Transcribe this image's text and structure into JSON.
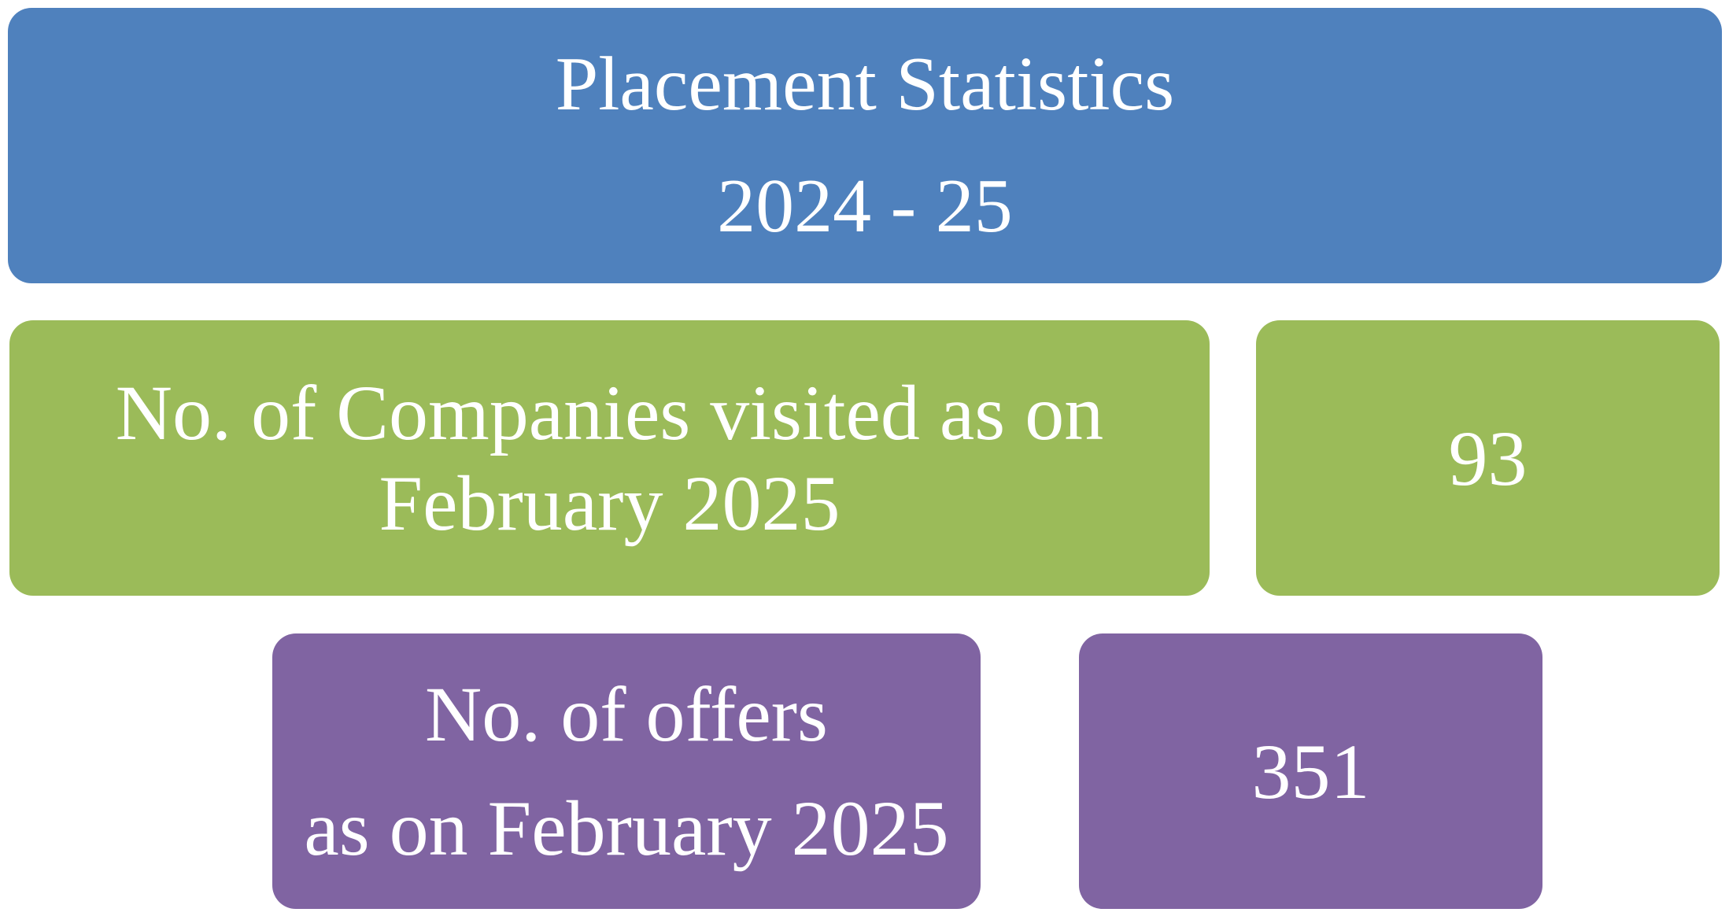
{
  "header": {
    "title": "Placement Statistics",
    "year": "2024 - 25"
  },
  "companies": {
    "label_line1": "No. of Companies visited as on",
    "label_line2": "February 2025",
    "value": "93"
  },
  "offers": {
    "label_line1": "No. of offers",
    "label_line2": "as on February 2025",
    "value": "351"
  },
  "colors": {
    "header": "#4f81bd",
    "companies": "#9bbb59",
    "offers": "#8064a2",
    "text": "#ffffff"
  }
}
